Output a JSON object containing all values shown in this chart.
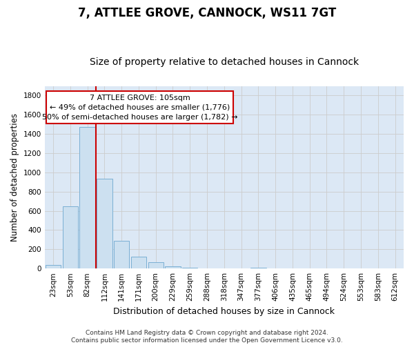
{
  "title": "7, ATTLEE GROVE, CANNOCK, WS11 7GT",
  "subtitle": "Size of property relative to detached houses in Cannock",
  "xlabel": "Distribution of detached houses by size in Cannock",
  "ylabel": "Number of detached properties",
  "bar_labels": [
    "23sqm",
    "53sqm",
    "82sqm",
    "112sqm",
    "141sqm",
    "171sqm",
    "200sqm",
    "229sqm",
    "259sqm",
    "288sqm",
    "318sqm",
    "347sqm",
    "377sqm",
    "406sqm",
    "435sqm",
    "465sqm",
    "494sqm",
    "524sqm",
    "553sqm",
    "583sqm",
    "612sqm"
  ],
  "bar_values": [
    35,
    650,
    1470,
    935,
    290,
    125,
    65,
    22,
    12,
    0,
    0,
    0,
    12,
    0,
    0,
    0,
    0,
    0,
    0,
    0,
    0
  ],
  "bar_color": "#cce0f0",
  "bar_edgecolor": "#7aafd4",
  "vline_color": "#cc0000",
  "annotation_line1": "7 ATTLEE GROVE: 105sqm",
  "annotation_line2": "← 49% of detached houses are smaller (1,776)",
  "annotation_line3": "50% of semi-detached houses are larger (1,782) →",
  "ylim": [
    0,
    1900
  ],
  "yticks": [
    0,
    200,
    400,
    600,
    800,
    1000,
    1200,
    1400,
    1600,
    1800
  ],
  "grid_color": "#cccccc",
  "background_color": "#dce8f5",
  "footer_text": "Contains HM Land Registry data © Crown copyright and database right 2024.\nContains public sector information licensed under the Open Government Licence v3.0.",
  "title_fontsize": 12,
  "subtitle_fontsize": 10,
  "xlabel_fontsize": 9,
  "ylabel_fontsize": 8.5,
  "tick_fontsize": 7.5,
  "annotation_fontsize": 8,
  "footer_fontsize": 6.5
}
